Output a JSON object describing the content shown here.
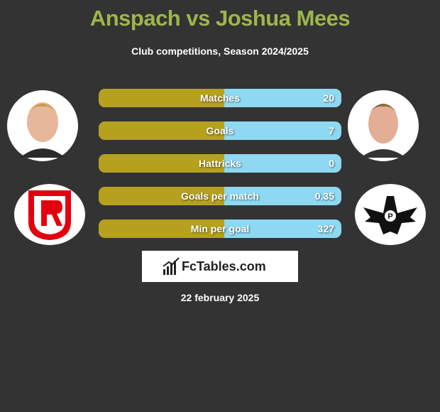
{
  "header": {
    "title": "Anspach vs Joshua Mees",
    "subtitle": "Club competitions, Season 2024/2025"
  },
  "stats": [
    {
      "label": "Matches",
      "value": 20
    },
    {
      "label": "Goals",
      "value": 7
    },
    {
      "label": "Hattricks",
      "value": 0
    },
    {
      "label": "Goals per match",
      "value": 0.35
    },
    {
      "label": "Min per goal",
      "value": 327
    }
  ],
  "footer": {
    "brand": "FcTables.com",
    "date": "22 february 2025"
  }
}
